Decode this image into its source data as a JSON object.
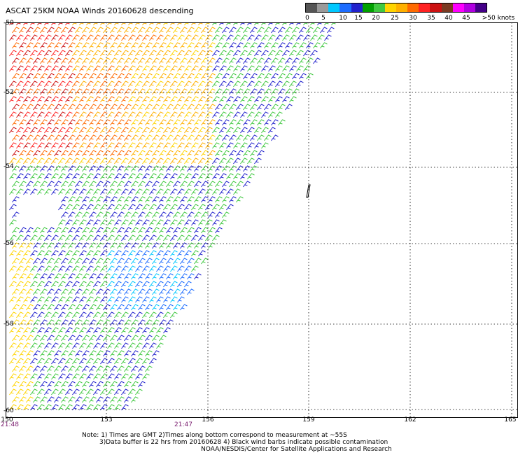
{
  "title": "ASCAT 25KM NOAA Winds 20160628 descending",
  "legend": {
    "unit_label": ">50 knots",
    "ticks": [
      "0",
      "5",
      "10",
      "15",
      "20",
      "25",
      "30",
      "35",
      "40",
      "45"
    ],
    "colors": [
      "#555555",
      "#9a9a9a",
      "#00c8ff",
      "#1d6cff",
      "#2222cc",
      "#00a000",
      "#40c840",
      "#ffd400",
      "#ffb000",
      "#ff6a00",
      "#ff2222",
      "#cc1111",
      "#7a3a22",
      "#ff00ff",
      "#b000e0",
      "#440088"
    ]
  },
  "map": {
    "lat_labels": [
      "-50",
      "-52",
      "-54",
      "-56",
      "-58",
      "-60"
    ],
    "lon_labels": [
      "150",
      "153",
      "156",
      "159",
      "162",
      "165"
    ],
    "time_labels": [
      "21:48",
      "21:47"
    ]
  },
  "notes": [
    "Note: 1) Times are GMT 2)Times along bottom correspond to measurement at ~55S",
    "3)Data buffer is 22 hrs from 20160628 4) Black wind barbs indicate possible contamination",
    "NOAA/NESDIS/Center for Satellite Applications and Research"
  ]
}
